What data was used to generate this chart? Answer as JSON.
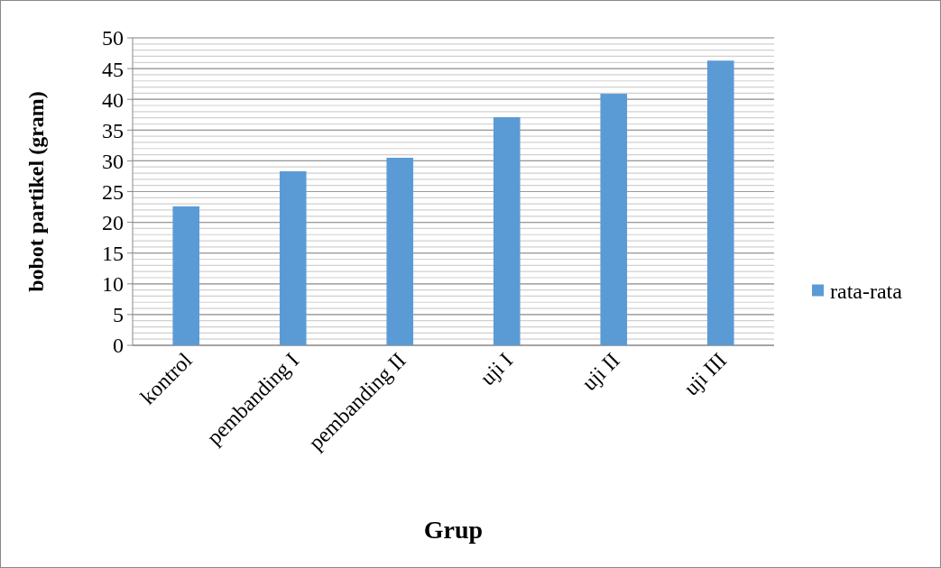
{
  "chart_data": {
    "type": "bar",
    "xlabel": "Grup",
    "ylabel": "bobot partikel (gram)",
    "categories": [
      "kontrol",
      "pembanding I",
      "pembanding II",
      "uji I",
      "uji II",
      "uji III"
    ],
    "series": [
      {
        "name": "rata-rata",
        "color": "#5b9bd5",
        "values": [
          22.6,
          28.3,
          30.5,
          37.1,
          40.9,
          46.3
        ]
      }
    ],
    "ylim": [
      0,
      50
    ],
    "yticks": [
      0,
      5,
      10,
      15,
      20,
      25,
      30,
      35,
      40,
      45,
      50
    ],
    "grid": "y",
    "legend": "right"
  }
}
